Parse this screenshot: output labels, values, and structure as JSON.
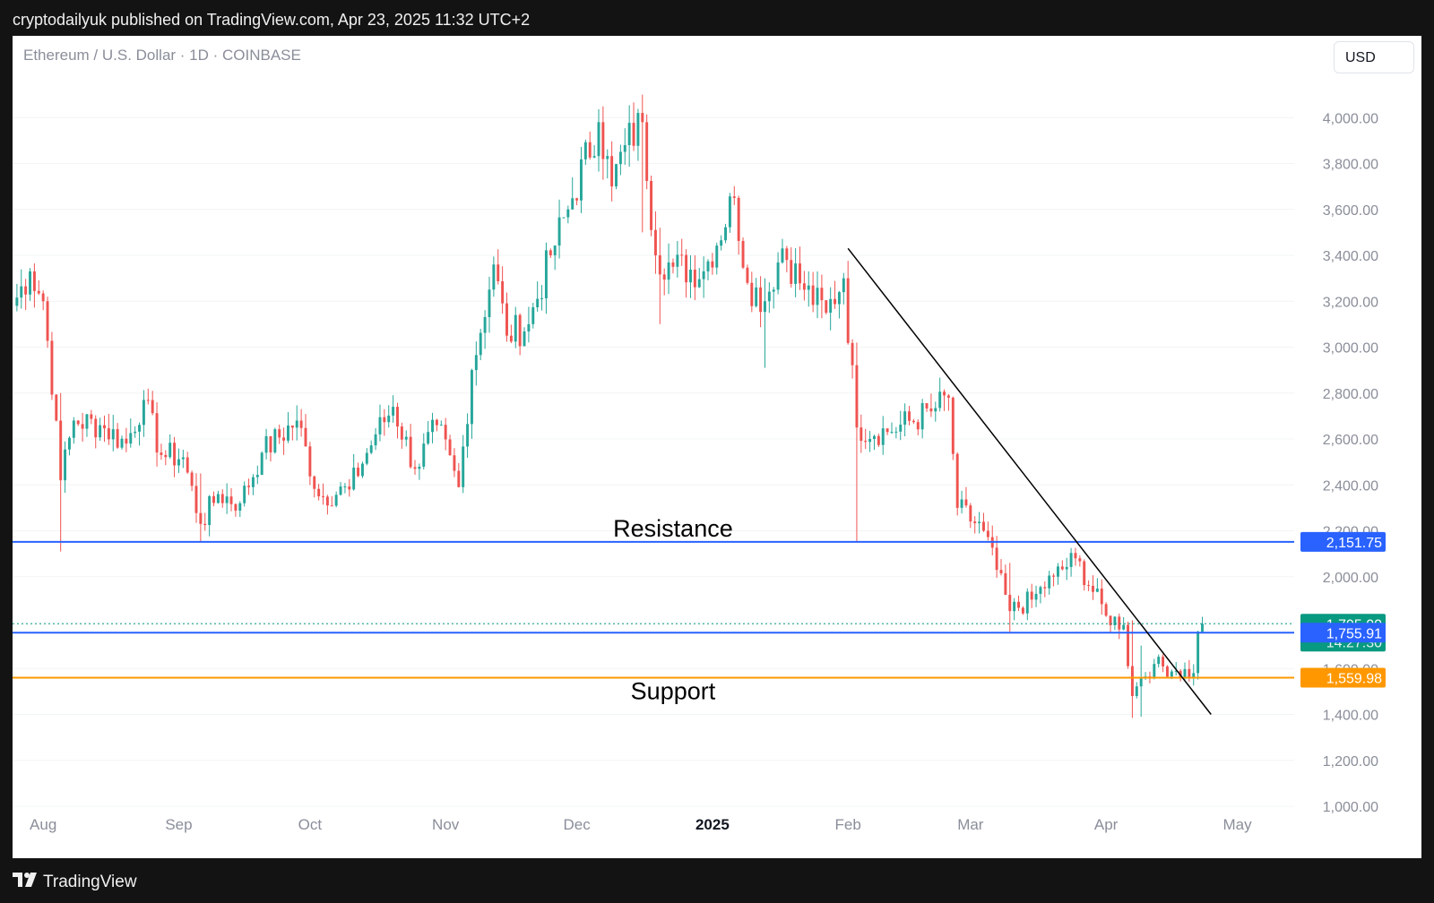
{
  "header": {
    "published_by": "cryptodailyuk published on TradingView.com, Apr 23, 2025 11:32 UTC+2"
  },
  "chart_header": {
    "symbol": "Ethereum / U.S. Dollar · 1D · COINBASE",
    "currency": "USD"
  },
  "footer": {
    "brand": "TradingView"
  },
  "colors": {
    "up": "#26a69a",
    "down": "#ef5350",
    "resistance": "#2962ff",
    "support": "#ff9800",
    "trendline": "#000000",
    "last_price": "#089981"
  },
  "chart_data": {
    "type": "candlestick",
    "title": "Ethereum / U.S. Dollar · 1D · COINBASE",
    "x_axis": {
      "labels": [
        "Aug",
        "Sep",
        "Oct",
        "Nov",
        "Dec",
        "2025",
        "Feb",
        "Mar",
        "Apr",
        "May"
      ],
      "range": [
        "2024-07-25",
        "2025-05-14"
      ]
    },
    "y_axis": {
      "ticks": [
        "4,000.00",
        "3,800.00",
        "3,600.00",
        "3,400.00",
        "3,200.00",
        "3,000.00",
        "2,800.00",
        "2,600.00",
        "2,400.00",
        "2,200.00",
        "2,000.00",
        "1,800.00",
        "1,600.00",
        "1,400.00",
        "1,200.00",
        "1,000.00"
      ],
      "range": [
        1000,
        4200
      ]
    },
    "price_path": [
      [
        "2024-07-25",
        3180
      ],
      [
        "2024-07-29",
        3330
      ],
      [
        "2024-08-01",
        3200
      ],
      [
        "2024-08-04",
        2680
      ],
      [
        "2024-08-05",
        2420
      ],
      [
        "2024-08-08",
        2680
      ],
      [
        "2024-08-14",
        2660
      ],
      [
        "2024-08-20",
        2580
      ],
      [
        "2024-08-24",
        2770
      ],
      [
        "2024-08-28",
        2530
      ],
      [
        "2024-09-02",
        2520
      ],
      [
        "2024-09-06",
        2230
      ],
      [
        "2024-09-10",
        2360
      ],
      [
        "2024-09-15",
        2320
      ],
      [
        "2024-09-20",
        2540
      ],
      [
        "2024-09-28",
        2680
      ],
      [
        "2024-10-03",
        2350
      ],
      [
        "2024-10-10",
        2380
      ],
      [
        "2024-10-16",
        2620
      ],
      [
        "2024-10-20",
        2740
      ],
      [
        "2024-10-25",
        2470
      ],
      [
        "2024-10-30",
        2660
      ],
      [
        "2024-11-04",
        2390
      ],
      [
        "2024-11-07",
        2900
      ],
      [
        "2024-11-12",
        3360
      ],
      [
        "2024-11-15",
        3050
      ],
      [
        "2024-11-20",
        3100
      ],
      [
        "2024-11-25",
        3400
      ],
      [
        "2024-11-29",
        3600
      ],
      [
        "2024-12-06",
        3980
      ],
      [
        "2024-12-09",
        3700
      ],
      [
        "2024-12-12",
        3880
      ],
      [
        "2024-12-16",
        3980
      ],
      [
        "2024-12-19",
        3400
      ],
      [
        "2024-12-23",
        3350
      ],
      [
        "2024-12-30",
        3330
      ],
      [
        "2025-01-06",
        3650
      ],
      [
        "2025-01-09",
        3280
      ],
      [
        "2025-01-13",
        3200
      ],
      [
        "2025-01-17",
        3430
      ],
      [
        "2025-01-22",
        3250
      ],
      [
        "2025-01-27",
        3150
      ],
      [
        "2025-01-31",
        3300
      ],
      [
        "2025-02-03",
        2650
      ],
      [
        "2025-02-10",
        2630
      ],
      [
        "2025-02-20",
        2720
      ],
      [
        "2025-02-24",
        2780
      ],
      [
        "2025-02-26",
        2300
      ],
      [
        "2025-03-04",
        2200
      ],
      [
        "2025-03-10",
        1850
      ],
      [
        "2025-03-15",
        1900
      ],
      [
        "2025-03-20",
        2000
      ],
      [
        "2025-03-25",
        2080
      ],
      [
        "2025-04-01",
        1830
      ],
      [
        "2025-04-05",
        1790
      ],
      [
        "2025-04-07",
        1480
      ],
      [
        "2025-04-09",
        1560
      ],
      [
        "2025-04-12",
        1620
      ],
      [
        "2025-04-17",
        1590
      ],
      [
        "2025-04-21",
        1580
      ],
      [
        "2025-04-22",
        1760
      ],
      [
        "2025-04-23",
        1795
      ]
    ],
    "price_range_samples": [
      [
        "2024-08-05",
        2110,
        2800
      ],
      [
        "2024-09-06",
        2150,
        2450
      ],
      [
        "2024-12-16",
        4100,
        3500
      ],
      [
        "2024-12-20",
        3100,
        3520
      ],
      [
        "2025-01-13",
        2910,
        3300
      ],
      [
        "2025-02-03",
        2150,
        3020
      ],
      [
        "2025-03-10",
        1760,
        2060
      ],
      [
        "2025-04-07",
        1385,
        1810
      ],
      [
        "2025-04-09",
        1390,
        1700
      ]
    ],
    "horizontal_lines": [
      {
        "label": "Resistance",
        "value": 2151.75,
        "value_label": "2,151.75",
        "color": "#2962ff"
      },
      {
        "value": 1755.91,
        "value_label": "1,755.91",
        "color": "#2962ff"
      },
      {
        "label": "Support",
        "value": 1559.98,
        "value_label": "1,559.98",
        "color": "#ff9800"
      }
    ],
    "trendline": {
      "from": [
        "2025-02-01",
        3430
      ],
      "to": [
        "2025-04-25",
        1400
      ]
    },
    "last_price": {
      "value": 1795.0,
      "value_label": "1,795.00",
      "countdown": "14:27:30"
    }
  }
}
